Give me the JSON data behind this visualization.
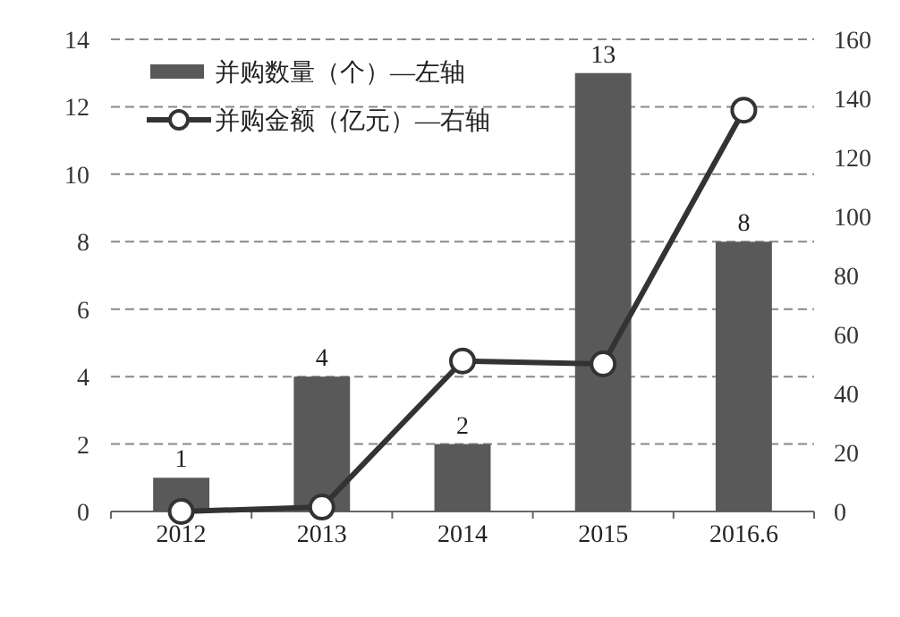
{
  "chart_data": {
    "type": "bar",
    "categories": [
      "2012",
      "2013",
      "2014",
      "2015",
      "2016.6"
    ],
    "series": [
      {
        "name": "并购数量（个）—左轴",
        "color": "#595959",
        "values": [
          1,
          4,
          2,
          13,
          8
        ],
        "value_labels": [
          "1",
          "4",
          "2",
          "13",
          "8"
        ]
      },
      {
        "name": "并购金额（亿元）—右轴",
        "type": "line",
        "axis": "y2",
        "color": "#333333",
        "marker": "circle",
        "values": [
          0,
          1.5,
          51,
          50,
          136
        ]
      }
    ],
    "ylim": [
      0,
      14
    ],
    "yticks": [
      0,
      2,
      4,
      6,
      8,
      10,
      12,
      14
    ],
    "y2lim": [
      0,
      160
    ],
    "y2ticks": [
      0,
      20,
      40,
      60,
      80,
      100,
      120,
      140,
      160
    ],
    "grid": "y",
    "legend": "top left"
  }
}
